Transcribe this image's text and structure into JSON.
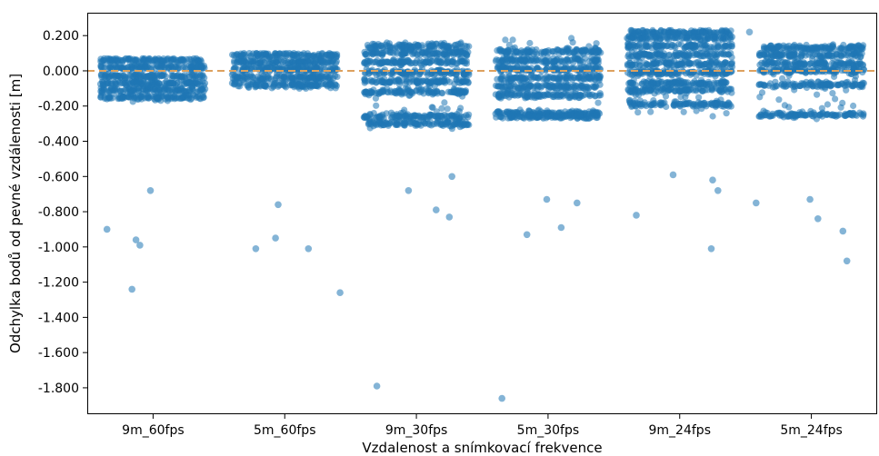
{
  "chart_data": {
    "type": "scatter",
    "title": "",
    "xlabel": "Vzdalenost a snímkovací frekvence",
    "ylabel": "Odchylka bodů od pevné vzdálenosti [m]",
    "ylim": [
      -1.95,
      0.33
    ],
    "grid": false,
    "reference_line": {
      "y": 0.0,
      "style": "dashed",
      "color": "#DDA15E"
    },
    "point_color": "#1F77B4",
    "y_ticks": [
      {
        "value": 0.2,
        "label": "0.200"
      },
      {
        "value": 0.0,
        "label": "0.000"
      },
      {
        "value": -0.2,
        "label": "-0.200"
      },
      {
        "value": -0.4,
        "label": "-0.400"
      },
      {
        "value": -0.6,
        "label": "-0.600"
      },
      {
        "value": -0.8,
        "label": "-0.800"
      },
      {
        "value": -1.0,
        "label": "-1.000"
      },
      {
        "value": -1.2,
        "label": "-1.200"
      },
      {
        "value": -1.4,
        "label": "-1.400"
      },
      {
        "value": -1.6,
        "label": "-1.600"
      },
      {
        "value": -1.8,
        "label": "-1.800"
      }
    ],
    "categories": [
      "9m_60fps",
      "5m_60fps",
      "9m_30fps",
      "5m_30fps",
      "9m_24fps",
      "5m_24fps"
    ],
    "groups": [
      {
        "name": "9m_60fps",
        "bands": [
          0.06,
          0.02,
          -0.03,
          -0.07,
          -0.11,
          -0.15
        ],
        "range": [
          -0.18,
          0.07
        ],
        "outliers": [
          {
            "x": -0.35,
            "y": -0.9
          },
          {
            "x": -0.13,
            "y": -0.96
          },
          {
            "x": -0.1,
            "y": -0.99
          },
          {
            "x": -0.16,
            "y": -1.24
          },
          {
            "x": -0.02,
            "y": -0.68
          }
        ]
      },
      {
        "name": "5m_60fps",
        "bands": [
          0.09,
          0.05,
          0.01,
          -0.04,
          -0.08
        ],
        "range": [
          -0.1,
          0.1
        ],
        "outliers": [
          {
            "x": -0.22,
            "y": -1.01
          },
          {
            "x": -0.07,
            "y": -0.95
          },
          {
            "x": -0.05,
            "y": -0.76
          },
          {
            "x": 0.18,
            "y": -1.01
          },
          {
            "x": 0.42,
            "y": -1.26
          }
        ]
      },
      {
        "name": "9m_30fps",
        "bands": [
          0.14,
          0.1,
          0.05,
          -0.01,
          -0.06,
          -0.12,
          -0.26,
          -0.3
        ],
        "range": [
          -0.33,
          0.16
        ],
        "outliers": [
          {
            "x": -0.3,
            "y": -1.79
          },
          {
            "x": -0.06,
            "y": -0.68
          },
          {
            "x": 0.15,
            "y": -0.79
          },
          {
            "x": 0.25,
            "y": -0.83
          },
          {
            "x": 0.27,
            "y": -0.6
          }
        ]
      },
      {
        "name": "5m_30fps",
        "bands": [
          0.11,
          0.06,
          0.01,
          -0.04,
          -0.09,
          -0.14,
          -0.24,
          -0.26
        ],
        "range": [
          -0.27,
          0.19
        ],
        "outliers": [
          {
            "x": -0.35,
            "y": -1.86
          },
          {
            "x": -0.16,
            "y": -0.93
          },
          {
            "x": -0.01,
            "y": -0.73
          },
          {
            "x": 0.1,
            "y": -0.89
          },
          {
            "x": 0.22,
            "y": -0.75
          }
        ]
      },
      {
        "name": "9m_24fps",
        "bands": [
          0.22,
          0.19,
          0.14,
          0.09,
          0.04,
          -0.01,
          -0.07,
          -0.11,
          -0.19
        ],
        "range": [
          -0.28,
          0.23
        ],
        "outliers": [
          {
            "x": -0.33,
            "y": -0.82
          },
          {
            "x": -0.05,
            "y": -0.59
          },
          {
            "x": 0.24,
            "y": -1.01
          },
          {
            "x": 0.25,
            "y": -0.62
          },
          {
            "x": 0.29,
            "y": -0.68
          }
        ]
      },
      {
        "name": "5m_24fps",
        "bands": [
          0.13,
          0.09,
          0.04,
          0.0,
          -0.08,
          -0.25
        ],
        "range": [
          -0.28,
          0.15
        ],
        "outliers": [
          {
            "x": -0.47,
            "y": 0.22
          },
          {
            "x": -0.42,
            "y": -0.75
          },
          {
            "x": -0.01,
            "y": -0.73
          },
          {
            "x": 0.05,
            "y": -0.84
          },
          {
            "x": 0.24,
            "y": -0.91
          },
          {
            "x": 0.27,
            "y": -1.08
          }
        ]
      }
    ]
  }
}
